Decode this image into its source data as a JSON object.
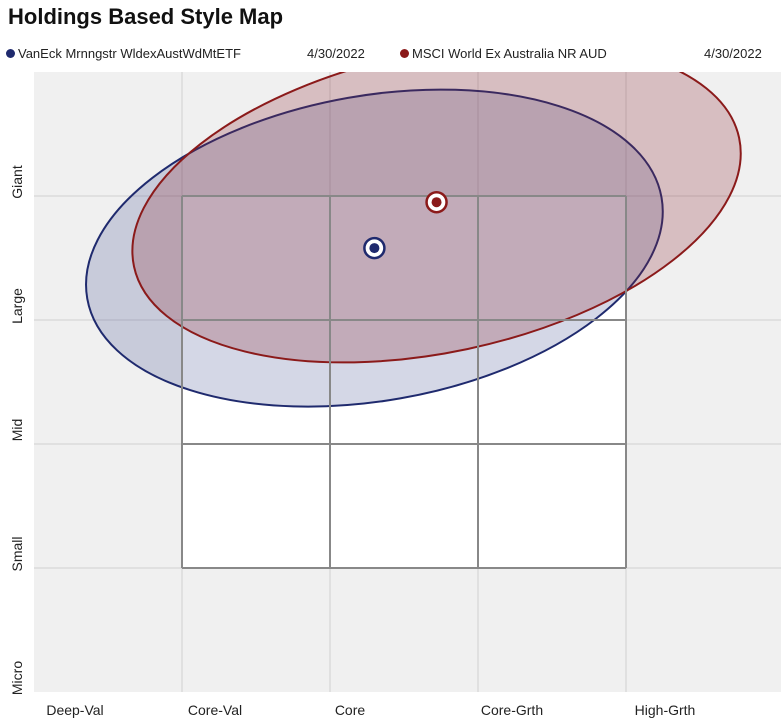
{
  "chart_data": {
    "type": "scatter",
    "title": "Holdings Based Style Map",
    "x_tick_labels": [
      "Deep-Val",
      "Core-Val",
      "Core",
      "Core-Grth",
      "High-Grth"
    ],
    "y_tick_labels": [
      "Giant",
      "Large",
      "Mid",
      "Small",
      "Micro"
    ],
    "xlim": [
      0,
      500
    ],
    "ylim": [
      0,
      500
    ],
    "grid": true,
    "legend_position": "top",
    "series": [
      {
        "name": "VanEck Mrnngstr WldexAustWdMtETF",
        "date": "4/30/2022",
        "color": "#1f2a6e",
        "x": 230,
        "y": 358,
        "ellipse": {
          "rx": 197,
          "ry": 123,
          "tilt_deg": -10
        }
      },
      {
        "name": "MSCI World Ex Australia NR AUD",
        "date": "4/30/2022",
        "color": "#8b1a1a",
        "x": 272,
        "y": 395,
        "ellipse": {
          "rx": 209,
          "ry": 121,
          "tilt_deg": -12
        }
      }
    ]
  }
}
